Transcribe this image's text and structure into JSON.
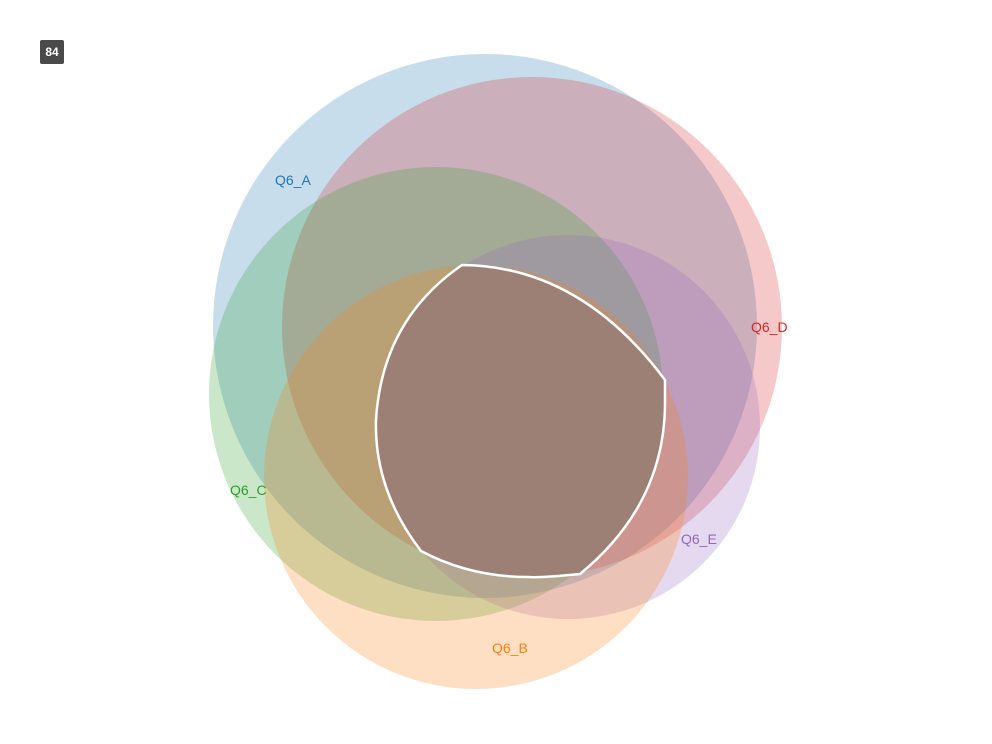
{
  "badge": {
    "text": "84",
    "color": "#4a4a4a"
  },
  "venn": {
    "sets": [
      {
        "key": "a",
        "name": "Q6_A",
        "color": "#1f77b4"
      },
      {
        "key": "b",
        "name": "Q6_B",
        "color": "#ff7f0e"
      },
      {
        "key": "c",
        "name": "Q6_C",
        "color": "#2ca02c"
      },
      {
        "key": "d",
        "name": "Q6_D",
        "color": "#d62728"
      },
      {
        "key": "e",
        "name": "Q6_E",
        "color": "#9467bd"
      }
    ],
    "fill_opacity": 0.25,
    "highlight": {
      "sets": [
        "Q6_A",
        "Q6_B",
        "Q6_C",
        "Q6_D",
        "Q6_E"
      ],
      "fill_color": "#9d8075",
      "stroke_color": "#ffffff"
    }
  }
}
